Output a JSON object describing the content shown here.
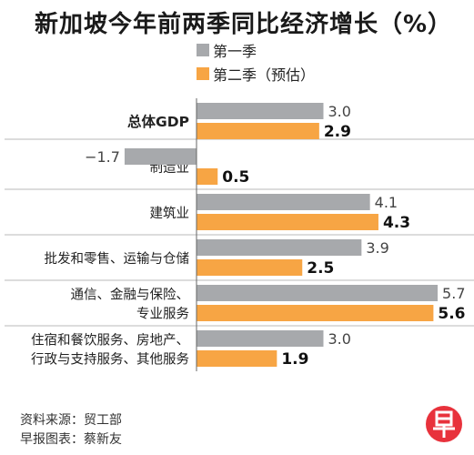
{
  "title": "新加坡今年前两季同比经济增长（%）",
  "colors": {
    "q1": "#a7a9ac",
    "q2": "#f7a544",
    "divider": "#b8b8b8",
    "axis": "#666666",
    "logo": "#e8323c"
  },
  "chart_data": {
    "type": "bar",
    "orientation": "horizontal",
    "title": "新加坡今年前两季同比经济增长（%）",
    "categories": [
      [
        "总体GDP"
      ],
      [
        "制造业"
      ],
      [
        "建筑业"
      ],
      [
        "批发和零售、运输与仓储"
      ],
      [
        "通信、金融与保险、",
        "专业服务"
      ],
      [
        "住宿和餐饮服务、房地产、",
        "行政与支持服务、其他服务"
      ]
    ],
    "bold_category": 0,
    "series": [
      {
        "name": "第一季",
        "values": [
          3.0,
          -1.7,
          4.1,
          3.9,
          5.7,
          3.0
        ],
        "labels": [
          "3.0",
          "−1.7",
          "4.1",
          "3.9",
          "5.7",
          "3.0"
        ]
      },
      {
        "name": "第二季（预估）",
        "values": [
          2.9,
          0.5,
          4.3,
          2.5,
          5.6,
          1.9
        ],
        "labels": [
          "2.9",
          "0.5",
          "4.3",
          "2.5",
          "5.6",
          "1.9"
        ]
      }
    ],
    "legend_position": "top"
  },
  "footer": {
    "source": "资料来源：贸工部",
    "credit": "早报图表：蔡新友"
  },
  "logo_text": "早"
}
